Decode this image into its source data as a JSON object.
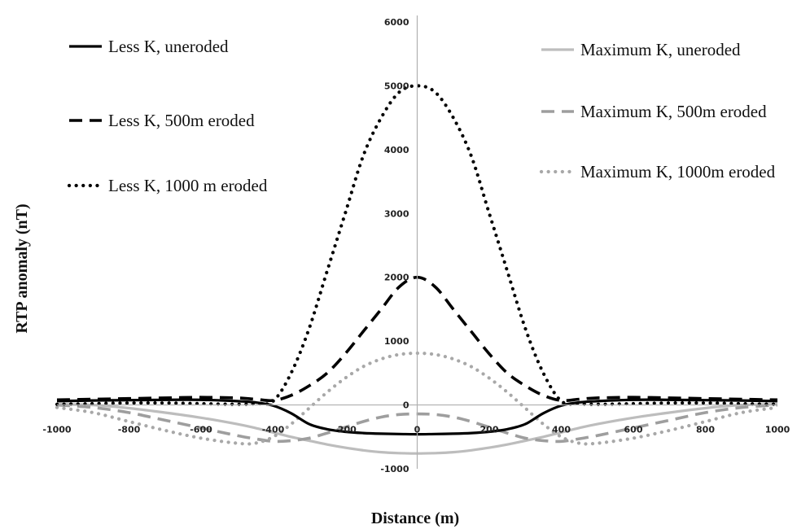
{
  "chart_data": {
    "type": "line",
    "xlabel": "Distance (m)",
    "ylabel": "RTP anomaly  (nT)",
    "xlim": [
      -1000,
      1000
    ],
    "ylim": [
      -1000,
      6000
    ],
    "x_ticks": [
      "-1000",
      "-800",
      "-600",
      "-400",
      "-200",
      "0",
      "200",
      "400",
      "600",
      "800",
      "1000"
    ],
    "y_ticks": [
      "-1000",
      "0",
      "1000",
      "2000",
      "3000",
      "4000",
      "5000",
      "6000"
    ],
    "grid": false,
    "legend_position": "top-left and top-right",
    "x": [
      -1000,
      -900,
      -800,
      -700,
      -600,
      -500,
      -450,
      -400,
      -350,
      -300,
      -250,
      -200,
      -150,
      -100,
      -50,
      0,
      50,
      100,
      150,
      200,
      250,
      300,
      350,
      400,
      450,
      500,
      600,
      700,
      800,
      900,
      1000
    ],
    "series": [
      {
        "name": "Less K, uneroded",
        "color": "#000000",
        "dash": "solid",
        "values": [
          60,
          70,
          75,
          80,
          80,
          60,
          40,
          -10,
          -130,
          -300,
          -380,
          -420,
          -440,
          -450,
          -455,
          -460,
          -455,
          -450,
          -440,
          -420,
          -380,
          -300,
          -130,
          -10,
          40,
          60,
          80,
          80,
          75,
          70,
          60
        ]
      },
      {
        "name": "Less K, 500m eroded",
        "color": "#000000",
        "dash": "dashed",
        "values": [
          80,
          90,
          100,
          110,
          120,
          110,
          90,
          70,
          150,
          300,
          500,
          800,
          1150,
          1500,
          1850,
          2000,
          1850,
          1500,
          1150,
          800,
          500,
          300,
          150,
          70,
          90,
          110,
          120,
          110,
          100,
          90,
          80
        ]
      },
      {
        "name": "Less K, 1000 m eroded",
        "color": "#000000",
        "dash": "dotted",
        "values": [
          10,
          20,
          30,
          30,
          20,
          10,
          20,
          60,
          500,
          1200,
          2100,
          3000,
          3900,
          4500,
          4900,
          5000,
          4900,
          4500,
          3900,
          3000,
          2100,
          1200,
          500,
          60,
          20,
          10,
          20,
          30,
          30,
          20,
          10
        ]
      },
      {
        "name": "Maximum  K, uneroded",
        "color": "#bdbdbd",
        "dash": "solid",
        "values": [
          10,
          0,
          -50,
          -120,
          -200,
          -300,
          -360,
          -430,
          -500,
          -560,
          -620,
          -670,
          -710,
          -740,
          -755,
          -760,
          -755,
          -740,
          -710,
          -670,
          -620,
          -560,
          -500,
          -430,
          -360,
          -300,
          -200,
          -120,
          -50,
          0,
          10
        ]
      },
      {
        "name": "Maximum  K, 500m eroded",
        "color": "#9e9e9e",
        "dash": "dashed",
        "values": [
          0,
          -40,
          -120,
          -240,
          -360,
          -480,
          -530,
          -570,
          -560,
          -520,
          -440,
          -350,
          -260,
          -190,
          -150,
          -140,
          -150,
          -190,
          -260,
          -350,
          -440,
          -520,
          -560,
          -570,
          -530,
          -480,
          -360,
          -240,
          -120,
          -40,
          0
        ]
      },
      {
        "name": "Maximum  K, 1000m eroded",
        "color": "#a8a8a8",
        "dash": "dotted",
        "values": [
          -40,
          -120,
          -260,
          -400,
          -520,
          -600,
          -600,
          -500,
          -300,
          -50,
          200,
          420,
          600,
          720,
          790,
          810,
          790,
          720,
          600,
          420,
          200,
          -50,
          -300,
          -500,
          -600,
          -600,
          -520,
          -400,
          -260,
          -120,
          -40
        ]
      }
    ]
  }
}
